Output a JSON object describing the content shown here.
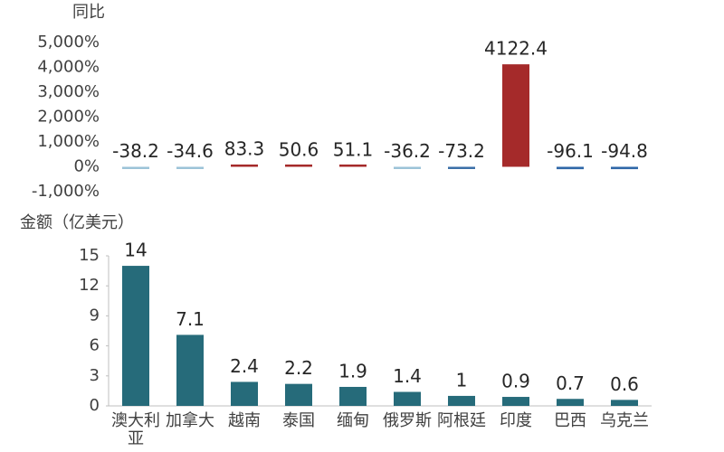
{
  "chart_data": [
    {
      "type": "bar",
      "y_label": "同比",
      "values": [
        -38.2,
        -34.6,
        83.3,
        50.6,
        51.1,
        -36.2,
        -73.2,
        4122.4,
        -96.1,
        -94.8
      ],
      "colors": [
        "#9cc3d8",
        "#9cc3d8",
        "#a52a2a",
        "#a52a2a",
        "#a52a2a",
        "#9cc3d8",
        "#3b6fa8",
        "#a52a2a",
        "#2f67a8",
        "#2f67a8"
      ],
      "ylim": [
        -1000,
        5000
      ],
      "yticks": [
        {
          "value": -1000,
          "label": "-1,000%"
        },
        {
          "value": 0,
          "label": "0%"
        },
        {
          "value": 1000,
          "label": "1,000%"
        },
        {
          "value": 2000,
          "label": "2,000%"
        },
        {
          "value": 3000,
          "label": "3,000%"
        },
        {
          "value": 4000,
          "label": "4,000%"
        },
        {
          "value": 5000,
          "label": "5,000%"
        }
      ]
    },
    {
      "type": "bar",
      "y_label": "金额（亿美元）",
      "categories": [
        "澳大利亚",
        "加拿大",
        "越南",
        "泰国",
        "缅甸",
        "俄罗斯",
        "阿根廷",
        "印度",
        "巴西",
        "乌克兰"
      ],
      "values": [
        14,
        7.1,
        2.4,
        2.2,
        1.9,
        1.4,
        1,
        0.9,
        0.7,
        0.6
      ],
      "color": "#266b7a",
      "ylim": [
        0,
        15
      ],
      "yticks": [
        0,
        3,
        6,
        9,
        12,
        15
      ]
    }
  ]
}
